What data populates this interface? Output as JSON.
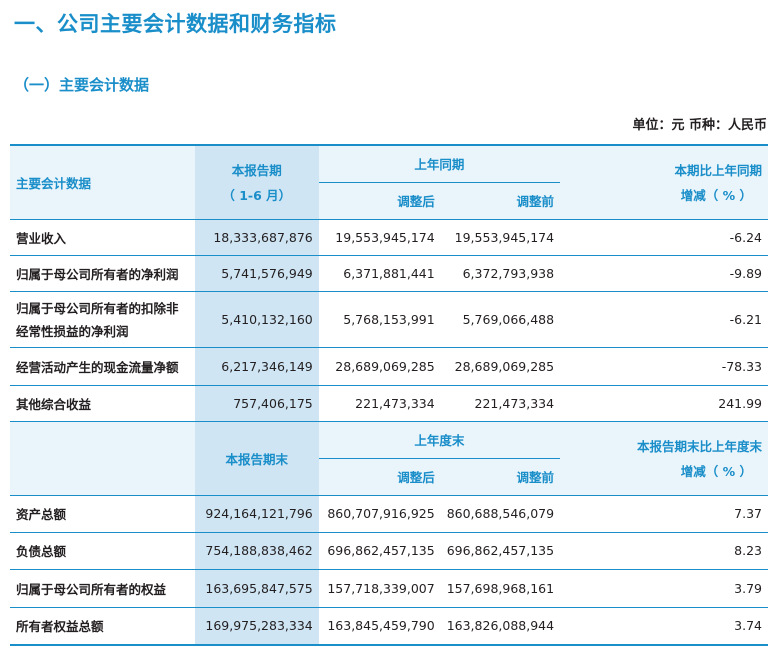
{
  "section_title": "一、公司主要会计数据和财务指标",
  "subsection_title": "（一）主要会计数据",
  "unit_line": "单位：元  币种：人民币",
  "header1": {
    "item": "主要会计数据",
    "current_line1": "本报告期",
    "current_line2": "（ 1-6 月）",
    "prior_group": "上年同期",
    "adjusted_after": "调整后",
    "adjusted_before": "调整前",
    "change_line1": "本期比上年同期",
    "change_line2": "增减（ % ）"
  },
  "rows1": [
    {
      "label": "营业收入",
      "current": "18,333,687,876",
      "after": "19,553,945,174",
      "before": "19,553,945,174",
      "change": "-6.24"
    },
    {
      "label": "归属于母公司所有者的净利润",
      "current": "5,741,576,949",
      "after": "6,371,881,441",
      "before": "6,372,793,938",
      "change": "-9.89"
    },
    {
      "label_line1": "归属于母公司所有者的扣除非",
      "label_line2": "经常性损益的净利润",
      "current": "5,410,132,160",
      "after": "5,768,153,991",
      "before": "5,769,066,488",
      "change": "-6.21"
    },
    {
      "label": "经营活动产生的现金流量净额",
      "current": "6,217,346,149",
      "after": "28,689,069,285",
      "before": "28,689,069,285",
      "change": "-78.33"
    },
    {
      "label": "其他综合收益",
      "current": "757,406,175",
      "after": "221,473,334",
      "before": "221,473,334",
      "change": "241.99"
    }
  ],
  "header2": {
    "current": "本报告期末",
    "prior_group": "上年度末",
    "adjusted_after": "调整后",
    "adjusted_before": "调整前",
    "change_line1": "本报告期末比上年度末",
    "change_line2": "增减（ % ）"
  },
  "rows2": [
    {
      "label": "资产总额",
      "current": "924,164,121,796",
      "after": "860,707,916,925",
      "before": "860,688,546,079",
      "change": "7.37"
    },
    {
      "label": "负债总额",
      "current": "754,188,838,462",
      "after": "696,862,457,135",
      "before": "696,862,457,135",
      "change": "8.23"
    },
    {
      "label": "归属于母公司所有者的权益",
      "current": "163,695,847,575",
      "after": "157,718,339,007",
      "before": "157,698,968,161",
      "change": "3.79"
    },
    {
      "label": "所有者权益总额",
      "current": "169,975,283,334",
      "after": "163,845,459,790",
      "before": "163,826,088,944",
      "change": "3.74"
    }
  ]
}
